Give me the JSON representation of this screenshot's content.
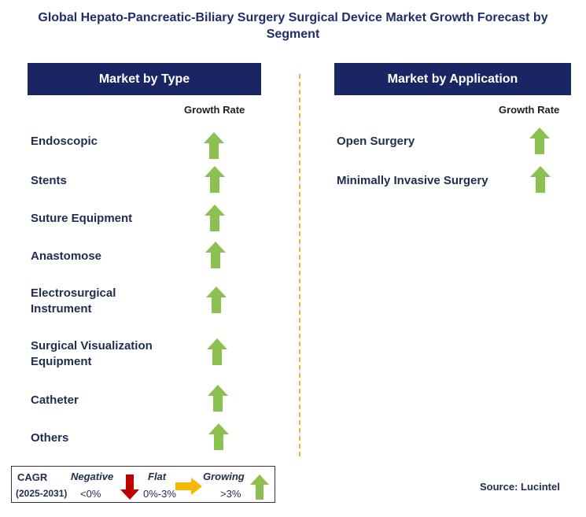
{
  "title": "Global Hepato-Pancreatic-Biliary Surgery Surgical Device Market Growth Forecast by Segment",
  "left_panel": {
    "header": "Market by Type",
    "column_label": "Growth Rate",
    "items": [
      {
        "label": "Endoscopic",
        "trend": "growing"
      },
      {
        "label": "Stents",
        "trend": "growing"
      },
      {
        "label": "Suture Equipment",
        "trend": "growing"
      },
      {
        "label": "Anastomose",
        "trend": "growing"
      },
      {
        "label": "Electrosurgical Instrument",
        "trend": "growing"
      },
      {
        "label": "Surgical Visualization Equipment",
        "trend": "growing"
      },
      {
        "label": "Catheter",
        "trend": "growing"
      },
      {
        "label": "Others",
        "trend": "growing"
      }
    ]
  },
  "right_panel": {
    "header": "Market by Application",
    "column_label": "Growth Rate",
    "items": [
      {
        "label": "Open Surgery",
        "trend": "growing"
      },
      {
        "label": "Minimally Invasive Surgery",
        "trend": "growing"
      }
    ]
  },
  "legend": {
    "cagr_label": "CAGR",
    "period": "(2025-2031)",
    "negative_label": "Negative",
    "negative_range": "<0%",
    "flat_label": "Flat",
    "flat_range": "0%-3%",
    "growing_label": "Growing",
    "growing_range": ">3%"
  },
  "source": "Source: Lucintel",
  "colors": {
    "header_bg": "#1a2563",
    "title": "#1f2d6b",
    "up_arrow": "#8cc152",
    "down_arrow": "#c00000",
    "flat_arrow": "#f5b800",
    "divider": "#f4b040"
  },
  "icons": {
    "growing": "up-arrow-icon",
    "negative": "down-arrow-icon",
    "flat": "right-arrow-icon"
  }
}
